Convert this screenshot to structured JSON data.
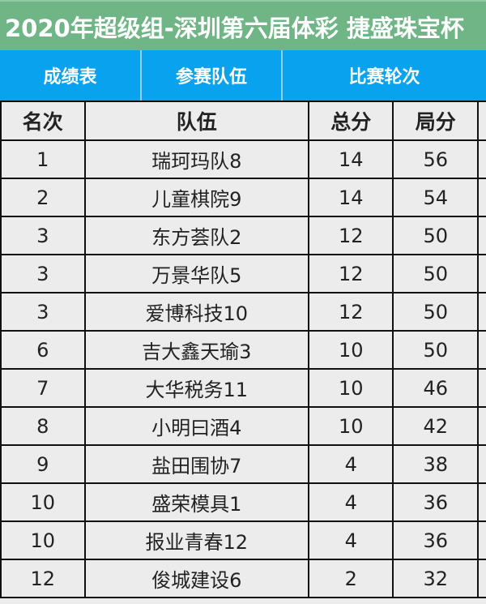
{
  "title": "2020年超级组-深圳第六届体彩 捷盛珠宝杯",
  "tabs": [
    "成绩表",
    "参赛队伍",
    "比赛轮次"
  ],
  "columns": [
    "名次",
    "队伍",
    "总分",
    "局分"
  ],
  "rows": [
    [
      "1",
      "瑞珂玛队8",
      "14",
      "56"
    ],
    [
      "2",
      "儿童棋院9",
      "14",
      "54"
    ],
    [
      "3",
      "东方荟队2",
      "12",
      "50"
    ],
    [
      "3",
      "万景华队5",
      "12",
      "50"
    ],
    [
      "3",
      "爱博科技10",
      "12",
      "50"
    ],
    [
      "6",
      "吉大鑫天瑜3",
      "10",
      "50"
    ],
    [
      "7",
      "大华税务11",
      "10",
      "46"
    ],
    [
      "8",
      "小明曰酒4",
      "10",
      "42"
    ],
    [
      "9",
      "盐田围协7",
      "4",
      "38"
    ],
    [
      "10",
      "盛荣模具1",
      "4",
      "36"
    ],
    [
      "10",
      "报业青春12",
      "4",
      "36"
    ],
    [
      "12",
      "俊城建设6",
      "2",
      "32"
    ]
  ]
}
